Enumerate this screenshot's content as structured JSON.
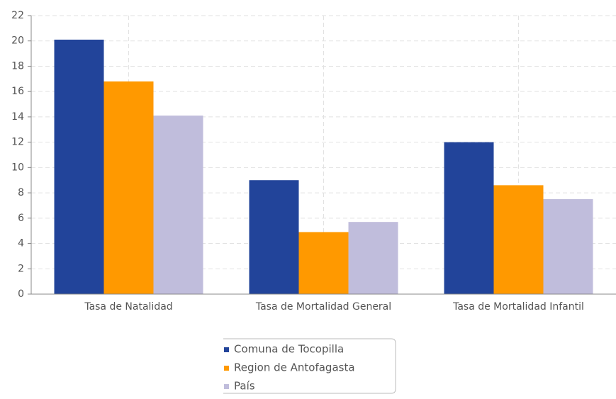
{
  "chart_data": {
    "type": "bar",
    "categories": [
      "Tasa de Natalidad",
      "Tasa de Mortalidad General",
      "Tasa de Mortalidad Infantil"
    ],
    "series": [
      {
        "name": "Comuna de Tocopilla",
        "color": "#22449a",
        "values": [
          20.1,
          9.0,
          12.0
        ]
      },
      {
        "name": "Region de Antofagasta",
        "color": "#ff9900",
        "values": [
          16.8,
          4.9,
          8.6
        ]
      },
      {
        "name": "País",
        "color": "#c0bddc",
        "values": [
          14.1,
          5.7,
          7.5
        ]
      }
    ],
    "ylim": [
      0,
      22
    ],
    "yticks": [
      0,
      2,
      4,
      6,
      8,
      10,
      12,
      14,
      16,
      18,
      20,
      22
    ],
    "grid": true
  }
}
